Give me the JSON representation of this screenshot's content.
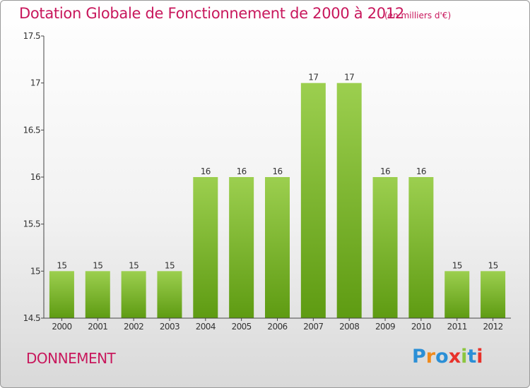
{
  "title": "Dotation Globale de Fonctionnement de 2000 à 2012",
  "unit_note": "(en milliers d'€)",
  "commune": "DONNEMENT",
  "logo": {
    "letters": [
      "P",
      "r",
      "o",
      "x",
      "i",
      "t",
      "i"
    ],
    "colors": [
      "#2b8fd6",
      "#f08a1c",
      "#2b8fd6",
      "#e8322b",
      "#8cc63f",
      "#2b8fd6",
      "#e8322b"
    ]
  },
  "colors": {
    "title": "#c8175c",
    "bar_top": "#9ccf4f",
    "bar_bottom": "#5e9b12"
  },
  "chart_data": {
    "type": "bar",
    "categories": [
      "2000",
      "2001",
      "2002",
      "2003",
      "2004",
      "2005",
      "2006",
      "2007",
      "2008",
      "2009",
      "2010",
      "2011",
      "2012"
    ],
    "values": [
      15,
      15,
      15,
      15,
      16,
      16,
      16,
      17,
      17,
      16,
      16,
      15,
      15
    ],
    "value_labels": [
      "15",
      "15",
      "15",
      "15",
      "16",
      "16",
      "16",
      "17",
      "17",
      "16",
      "16",
      "15",
      "15"
    ],
    "ylim": [
      14.5,
      17.5
    ],
    "yticks": [
      14.5,
      15,
      15.5,
      16,
      16.5,
      17,
      17.5
    ],
    "ytick_labels": [
      "14.5",
      "15",
      "15.5",
      "16",
      "16.5",
      "17",
      "17.5"
    ],
    "grid": false
  }
}
